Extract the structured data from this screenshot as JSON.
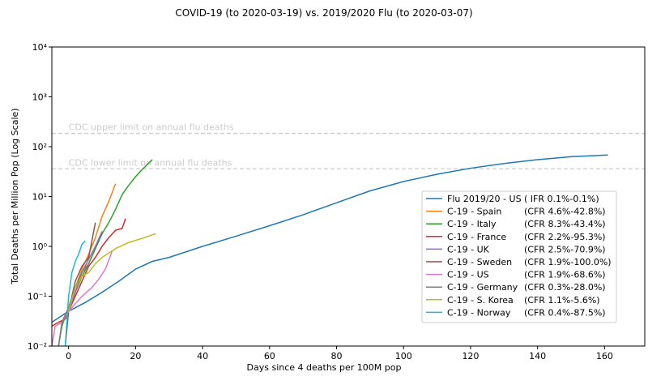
{
  "chart_data": {
    "type": "line",
    "title": "COVID-19 (to 2020-03-19) vs. 2019/2020 Flu (to 2020-03-07)",
    "x_label": "Days since 4 deaths per 100M pop",
    "y_label": "Total Deaths per Million Pop (Log Scale)",
    "log_y": true,
    "xlim": [
      -5,
      172
    ],
    "ylim": [
      0.01,
      10000
    ],
    "xticks": [
      0,
      20,
      40,
      60,
      80,
      100,
      120,
      140,
      160
    ],
    "yticks": [
      {
        "value": 0.01,
        "label": "10⁻²"
      },
      {
        "value": 0.1,
        "label": "10⁻¹"
      },
      {
        "value": 1,
        "label": "10⁰"
      },
      {
        "value": 10,
        "label": "10¹"
      },
      {
        "value": 100,
        "label": "10²"
      },
      {
        "value": 1000,
        "label": "10³"
      },
      {
        "value": 10000,
        "label": "10⁴"
      }
    ],
    "reference_lines": [
      {
        "value": 185,
        "label": "CDC upper limit on annual flu deaths",
        "color": "#cccccc"
      },
      {
        "value": 36,
        "label": "CDC lower limit on annual flu deaths",
        "color": "#cccccc"
      }
    ],
    "legend": "center right",
    "series": [
      {
        "name": "Flu 2019/20 - US",
        "note": "( IFR 0.1%-0.1%)",
        "color": "#1f77b4",
        "x": [
          -5,
          0,
          5,
          10,
          15,
          20,
          25,
          30,
          40,
          50,
          60,
          70,
          80,
          90,
          100,
          110,
          120,
          130,
          140,
          150,
          161
        ],
        "values": [
          0.03,
          0.05,
          0.075,
          0.12,
          0.2,
          0.35,
          0.5,
          0.6,
          1.0,
          1.6,
          2.6,
          4.3,
          7.5,
          13,
          20,
          28,
          37,
          46,
          55,
          63,
          68
        ]
      },
      {
        "name": "C-19 - Spain",
        "note": "(CFR 4.6%-42.8%)",
        "color": "#ff7f0e",
        "x": [
          0,
          2,
          4,
          6,
          8,
          10,
          12,
          14
        ],
        "values": [
          0.05,
          0.15,
          0.35,
          0.7,
          1.5,
          4,
          8,
          18
        ]
      },
      {
        "name": "C-19 - Italy",
        "note": "(CFR 8.3%-43.4%)",
        "color": "#2ca02c",
        "x": [
          -3,
          -2,
          0,
          2,
          4,
          6,
          8,
          10,
          12,
          14,
          16,
          18,
          20,
          22,
          25
        ],
        "values": [
          0.01,
          0.025,
          0.06,
          0.12,
          0.25,
          0.45,
          0.9,
          1.8,
          3,
          5.5,
          11,
          17,
          25,
          35,
          55
        ]
      },
      {
        "name": "C-19 - France",
        "note": "(CFR 2.2%-95.3%)",
        "color": "#d62728",
        "x": [
          -5,
          -3,
          -1,
          0,
          2,
          4,
          6,
          8,
          10,
          12,
          14,
          16,
          17
        ],
        "values": [
          0.025,
          0.03,
          0.035,
          0.05,
          0.1,
          0.2,
          0.4,
          0.6,
          1.0,
          1.5,
          2.1,
          2.3,
          3.6
        ]
      },
      {
        "name": "C-19 - UK",
        "note": "(CFR 2.5%-70.9%)",
        "color": "#9467bd",
        "x": [
          0,
          2,
          4,
          6,
          8,
          10
        ],
        "values": [
          0.05,
          0.12,
          0.3,
          0.55,
          1.0,
          2.0
        ]
      },
      {
        "name": "C-19 - Sweden",
        "note": "(CFR 1.9%-100.0%)",
        "color": "#8c564b",
        "x": [
          -1,
          0,
          2,
          4,
          6,
          8
        ],
        "values": [
          0.01,
          0.05,
          0.2,
          0.4,
          0.6,
          3
        ]
      },
      {
        "name": "C-19 - US",
        "note": "(CFR 1.9%-68.6%)",
        "color": "#e377c2",
        "x": [
          -5,
          -4,
          -2,
          0,
          4,
          7,
          9,
          11,
          13
        ],
        "values": [
          0.01,
          0.025,
          0.03,
          0.05,
          0.1,
          0.15,
          0.22,
          0.35,
          0.8
        ]
      },
      {
        "name": "C-19 - Germany",
        "note": "(CFR 0.3%-28.0%)",
        "color": "#7f7f7f",
        "x": [
          -3,
          -2,
          0,
          2,
          4,
          6
        ],
        "values": [
          0.01,
          0.03,
          0.06,
          0.15,
          0.3,
          0.45
        ]
      },
      {
        "name": "C-19 - S. Korea",
        "note": "(CFR 1.1%-5.6%)",
        "color": "#bcbd22",
        "x": [
          0,
          2,
          4,
          6,
          8,
          10,
          14,
          18,
          22,
          26
        ],
        "values": [
          0.05,
          0.15,
          0.25,
          0.3,
          0.45,
          0.6,
          0.9,
          1.2,
          1.45,
          1.8
        ]
      },
      {
        "name": "C-19 - Norway",
        "note": "(CFR 0.4%-87.5%)",
        "color": "#17becf",
        "x": [
          -1,
          0,
          1,
          2,
          3,
          4,
          5
        ],
        "values": [
          0.01,
          0.1,
          0.3,
          0.5,
          0.7,
          1.1,
          1.3
        ]
      }
    ]
  }
}
